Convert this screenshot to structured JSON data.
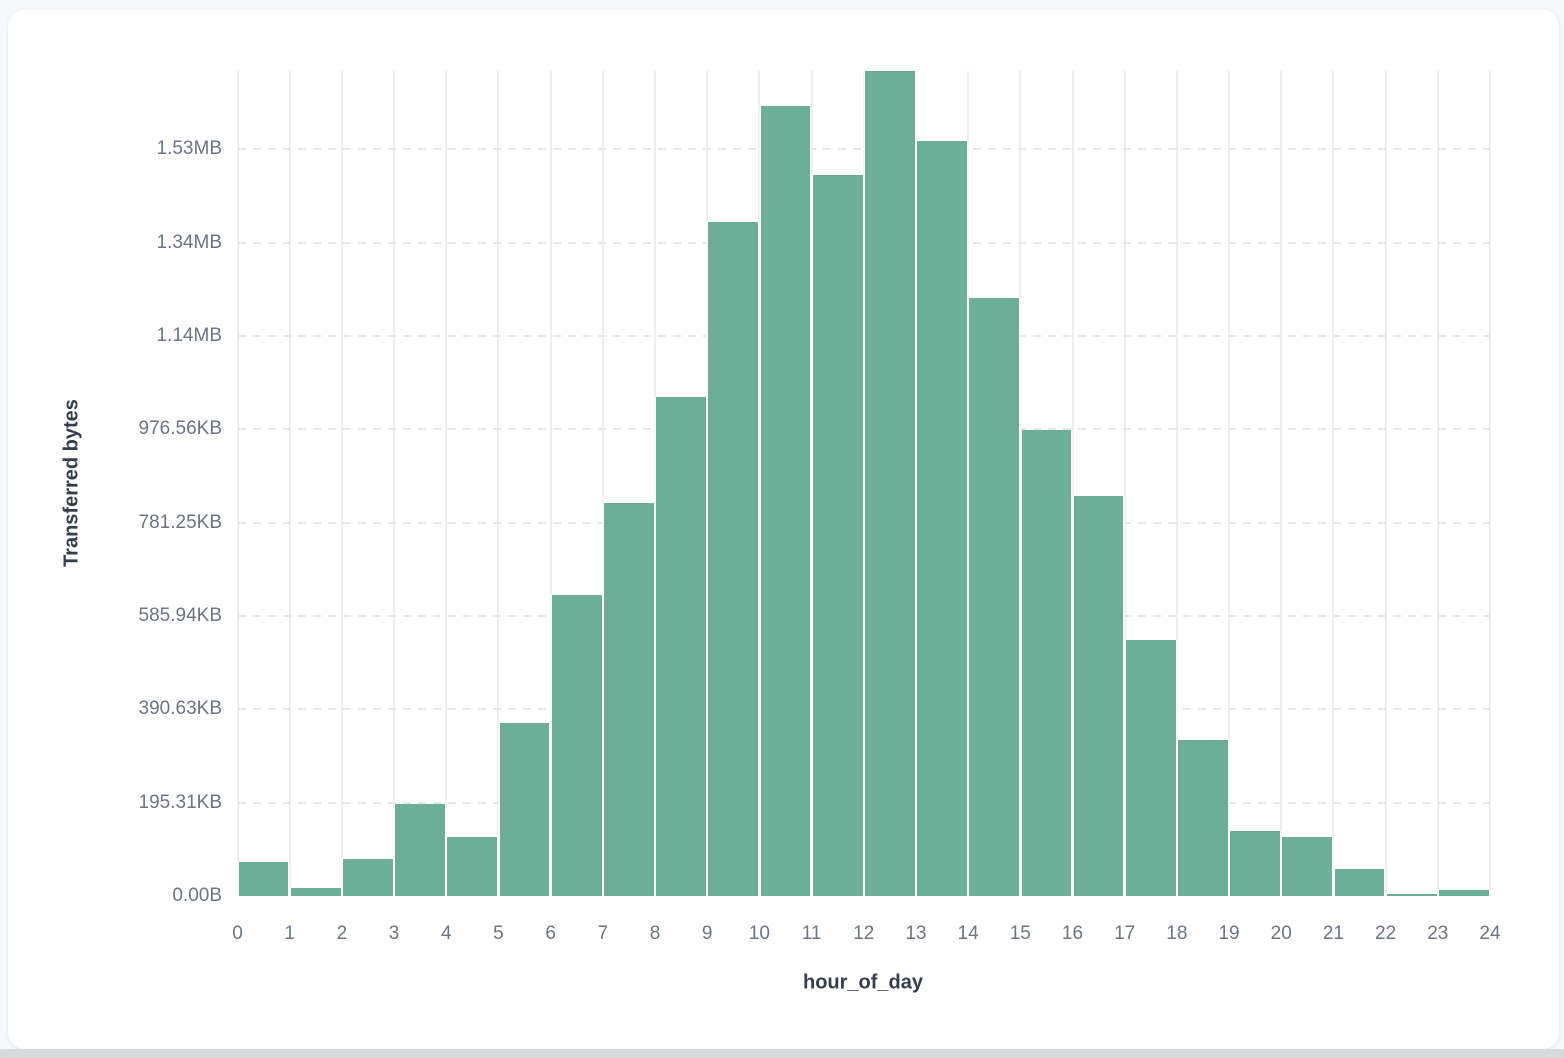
{
  "chart_data": {
    "type": "bar",
    "subtype": "histogram",
    "xlabel": "hour_of_day",
    "ylabel": "Transferred bytes",
    "bin_edges": [
      0,
      1,
      2,
      3,
      4,
      5,
      6,
      7,
      8,
      9,
      10,
      11,
      12,
      13,
      14,
      15,
      16,
      17,
      18,
      19,
      20,
      21,
      22,
      23,
      24
    ],
    "categories": [
      0,
      1,
      2,
      3,
      4,
      5,
      6,
      7,
      8,
      9,
      10,
      11,
      12,
      13,
      14,
      15,
      16,
      17,
      18,
      19,
      20,
      21,
      22,
      23
    ],
    "values": [
      73000,
      16500,
      79000,
      197000,
      127000,
      370000,
      645000,
      842000,
      1069000,
      1444000,
      1692000,
      1546000,
      1768000,
      1617000,
      1282000,
      999000,
      857000,
      549000,
      334000,
      140000,
      126000,
      58000,
      5000,
      13000
    ],
    "values_unit": "bytes",
    "ylim": [
      0,
      1768000
    ],
    "y_tick_values": [
      0,
      200000,
      400000,
      600000,
      800000,
      1000000,
      1200000,
      1400000,
      1600000
    ],
    "y_tick_labels": [
      "0.00B",
      "195.31KB",
      "390.63KB",
      "585.94KB",
      "781.25KB",
      "976.56KB",
      "1.14MB",
      "1.34MB",
      "1.53MB"
    ],
    "x_tick_labels": [
      "0",
      "1",
      "2",
      "3",
      "4",
      "5",
      "6",
      "7",
      "8",
      "9",
      "10",
      "11",
      "12",
      "13",
      "14",
      "15",
      "16",
      "17",
      "18",
      "19",
      "20",
      "21",
      "22",
      "23",
      "24"
    ],
    "bar_color": "#6DAE98",
    "grid": true,
    "legend_position": "none"
  },
  "colors": {
    "bar_fill": "#6DAE98",
    "vertical_grid": "#edeef2",
    "horizontal_grid_dash": "#e4e7eb",
    "tick_label": "#6d7582",
    "axis_title": "#343e4d",
    "card_background": "#ffffff",
    "page_background": "#f7f8fa"
  }
}
